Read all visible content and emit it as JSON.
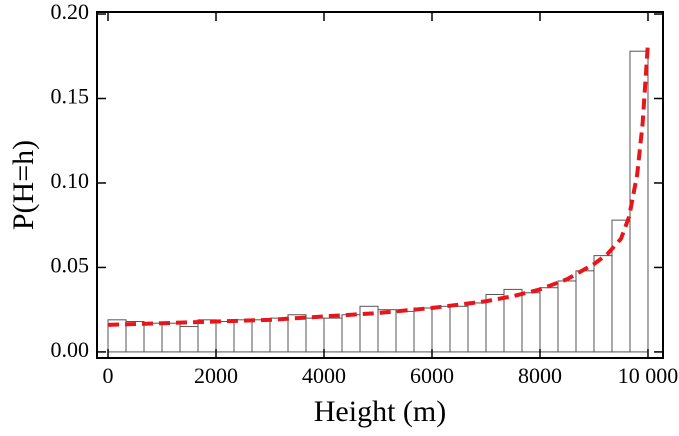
{
  "chart_data": {
    "type": "histogram",
    "xlabel": "Height (m)",
    "ylabel": "P(H=h)",
    "bins": [
      0,
      333.3,
      666.7,
      1000,
      1333.3,
      1666.7,
      2000,
      2333.3,
      2666.7,
      3000,
      3333.3,
      3666.7,
      4000,
      4333.3,
      4666.7,
      5000,
      5333.3,
      5666.7,
      6000,
      6333.3,
      6666.7,
      7000,
      7333.3,
      7666.7,
      8000,
      8333.3,
      8666.7,
      9000,
      9333.3,
      9666.7,
      10000
    ],
    "values": [
      0.019,
      0.018,
      0.017,
      0.017,
      0.015,
      0.019,
      0.018,
      0.019,
      0.019,
      0.02,
      0.022,
      0.02,
      0.02,
      0.022,
      0.027,
      0.025,
      0.024,
      0.026,
      0.027,
      0.027,
      0.029,
      0.034,
      0.037,
      0.035,
      0.038,
      0.042,
      0.048,
      0.057,
      0.078,
      0.178
    ],
    "bar_color": "#ffffff",
    "edge_color": "#555555",
    "fit": {
      "x": [
        0,
        1000,
        2000,
        3000,
        4000,
        5000,
        6000,
        7000,
        7500,
        8000,
        8500,
        9000,
        9250,
        9500,
        9650,
        9800,
        9900,
        10000
      ],
      "values": [
        0.016,
        0.017,
        0.018,
        0.019,
        0.021,
        0.023,
        0.026,
        0.03,
        0.033,
        0.037,
        0.043,
        0.052,
        0.058,
        0.067,
        0.08,
        0.105,
        0.135,
        0.183
      ],
      "color": "#e8161b",
      "dashed": true
    },
    "xlim": [
      -204,
      10278
    ],
    "ylim": [
      -0.0036,
      0.2012
    ],
    "xticks": [
      0,
      2000,
      4000,
      6000,
      8000,
      {
        "value": 10000,
        "label": "10 000"
      }
    ],
    "yticks": [
      {
        "value": 0,
        "label": "0.00"
      },
      {
        "value": 0.05,
        "label": "0.05"
      },
      {
        "value": 0.1,
        "label": "0.10"
      },
      {
        "value": 0.15,
        "label": "0.15"
      },
      {
        "value": 0.2,
        "label": "0.20"
      }
    ]
  }
}
